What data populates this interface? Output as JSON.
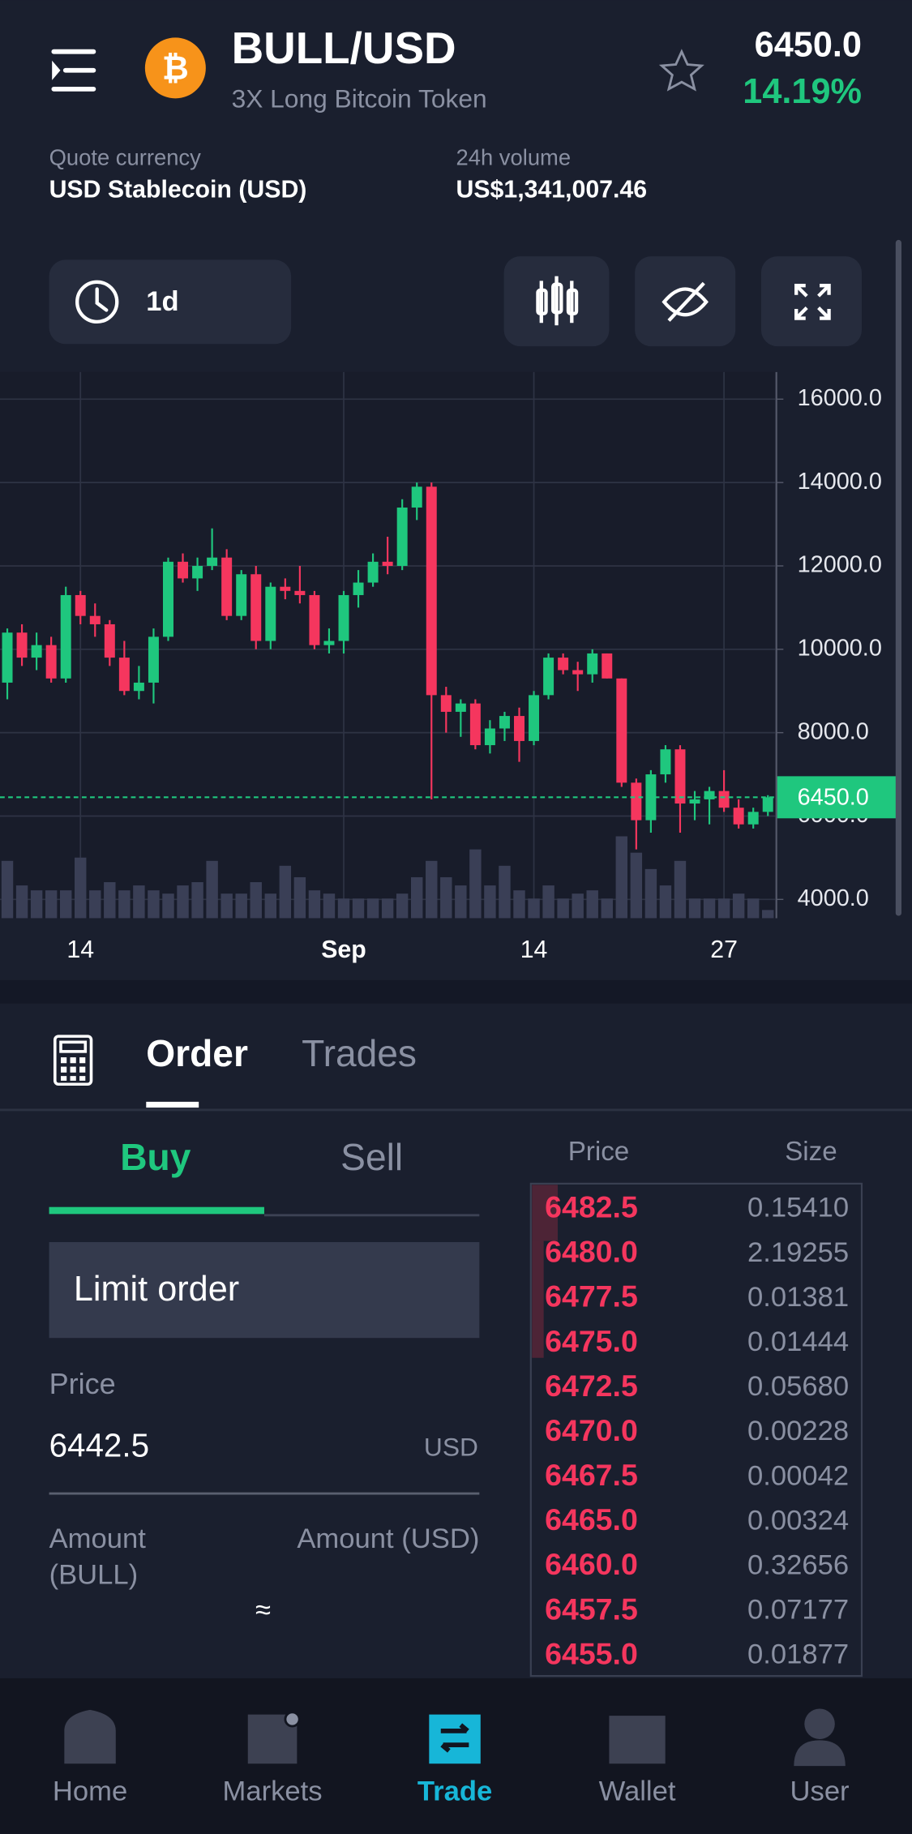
{
  "header": {
    "logo": "₿",
    "symbol": "BULL/USD",
    "name": "3X Long Bitcoin Token",
    "price": "6450.0",
    "change": "14.19%"
  },
  "stats": [
    {
      "label": "Quote currency",
      "value": "USD Stablecoin (USD)"
    },
    {
      "label": "24h volume",
      "value": "US$1,341,007.46"
    }
  ],
  "toolbar": {
    "interval": "1d"
  },
  "chart_data": {
    "type": "candlestick",
    "categories": [
      null,
      null,
      null,
      null,
      null,
      "14",
      null,
      null,
      null,
      null,
      null,
      null,
      null,
      null,
      null,
      null,
      null,
      null,
      null,
      null,
      null,
      null,
      null,
      "Sep",
      null,
      null,
      null,
      null,
      null,
      null,
      null,
      null,
      null,
      null,
      null,
      null,
      "14",
      null,
      null,
      null,
      null,
      null,
      null,
      null,
      null,
      null,
      null,
      null,
      null,
      "27",
      null,
      null,
      null
    ],
    "candles": [
      [
        9200,
        10500,
        8800,
        10400
      ],
      [
        10400,
        10600,
        9600,
        9800
      ],
      [
        9800,
        10400,
        9500,
        10100
      ],
      [
        10100,
        10300,
        9200,
        9300
      ],
      [
        9300,
        11500,
        9200,
        11300
      ],
      [
        11300,
        11400,
        10600,
        10800
      ],
      [
        10800,
        11100,
        10300,
        10600
      ],
      [
        10600,
        10700,
        9600,
        9800
      ],
      [
        9800,
        10200,
        8900,
        9000
      ],
      [
        9000,
        9600,
        8800,
        9200
      ],
      [
        9200,
        10500,
        8700,
        10300
      ],
      [
        10300,
        12200,
        10200,
        12100
      ],
      [
        12100,
        12300,
        11600,
        11700
      ],
      [
        11700,
        12200,
        11400,
        12000
      ],
      [
        12000,
        12900,
        11900,
        12200
      ],
      [
        12200,
        12400,
        10700,
        10800
      ],
      [
        10800,
        11900,
        10700,
        11800
      ],
      [
        11800,
        12000,
        10000,
        10200
      ],
      [
        10200,
        11600,
        10000,
        11500
      ],
      [
        11500,
        11700,
        11200,
        11400
      ],
      [
        11400,
        12000,
        11100,
        11300
      ],
      [
        11300,
        11400,
        10000,
        10100
      ],
      [
        10100,
        10500,
        9900,
        10200
      ],
      [
        10200,
        11400,
        9900,
        11300
      ],
      [
        11300,
        11900,
        11000,
        11600
      ],
      [
        11600,
        12300,
        11500,
        12100
      ],
      [
        12100,
        12700,
        11800,
        12000
      ],
      [
        12000,
        13600,
        11900,
        13400
      ],
      [
        13400,
        14000,
        13100,
        13900
      ],
      [
        13900,
        14000,
        6400,
        8900
      ],
      [
        8900,
        9100,
        8000,
        8500
      ],
      [
        8500,
        8800,
        7900,
        8700
      ],
      [
        8700,
        8800,
        7600,
        7700
      ],
      [
        7700,
        8300,
        7500,
        8100
      ],
      [
        8100,
        8500,
        7800,
        8400
      ],
      [
        8400,
        8600,
        7300,
        7800
      ],
      [
        7800,
        9000,
        7700,
        8900
      ],
      [
        8900,
        9900,
        8800,
        9800
      ],
      [
        9800,
        9900,
        9400,
        9500
      ],
      [
        9500,
        9700,
        9000,
        9400
      ],
      [
        9400,
        10000,
        9200,
        9900
      ],
      [
        9900,
        9900,
        9300,
        9300
      ],
      [
        9300,
        9300,
        6700,
        6800
      ],
      [
        6800,
        6900,
        5200,
        5900
      ],
      [
        5900,
        7100,
        5600,
        7000
      ],
      [
        7000,
        7700,
        6800,
        7600
      ],
      [
        7600,
        7700,
        5600,
        6300
      ],
      [
        6300,
        6600,
        5900,
        6400
      ],
      [
        6400,
        6700,
        5800,
        6600
      ],
      [
        6600,
        7100,
        6100,
        6200
      ],
      [
        6200,
        6400,
        5700,
        5800
      ],
      [
        5800,
        6200,
        5700,
        6100
      ],
      [
        6100,
        6500,
        6000,
        6450
      ]
    ],
    "volumes": [
      35,
      20,
      17,
      17,
      17,
      37,
      17,
      22,
      17,
      20,
      17,
      15,
      20,
      22,
      35,
      15,
      15,
      22,
      15,
      32,
      25,
      17,
      15,
      12,
      12,
      12,
      12,
      15,
      25,
      35,
      25,
      20,
      42,
      20,
      32,
      17,
      12,
      20,
      12,
      15,
      17,
      12,
      50,
      40,
      30,
      20,
      35,
      12,
      12,
      12,
      15,
      12,
      5
    ],
    "vlim": [
      0,
      100
    ],
    "ylim": [
      3550,
      16650
    ],
    "yticks": [
      {
        "value": 4000,
        "label": "4000.0"
      },
      {
        "value": 6000,
        "label": "6000.0"
      },
      {
        "value": 8000,
        "label": "8000.0"
      },
      {
        "value": 10000,
        "label": "10000.0"
      },
      {
        "value": 12000,
        "label": "12000.0"
      },
      {
        "value": 14000,
        "label": "14000.0"
      },
      {
        "value": 16000,
        "label": "16000.0"
      }
    ],
    "current_price": {
      "value": 6450,
      "label": "6450.0"
    },
    "grid": true,
    "up_color": "#1fc77e",
    "down_color": "#f5365e",
    "volume_color": "#3a3f56",
    "current_color": "#1fc77e"
  },
  "order_panel": {
    "tabs": [
      "Order",
      "Trades"
    ],
    "sides": [
      "Buy",
      "Sell"
    ],
    "order_type": "Limit order",
    "price_label": "Price",
    "price": "6442.5",
    "price_unit": "USD",
    "amount_label": [
      "Amount",
      "(BULL)"
    ],
    "amount_usd_label": "Amount (USD)",
    "approx": "≈"
  },
  "order_book": {
    "headers": [
      "Price",
      "Size"
    ],
    "rows": [
      [
        "6482.5",
        "0.15410"
      ],
      [
        "6480.0",
        "2.19255"
      ],
      [
        "6477.5",
        "0.01381"
      ],
      [
        "6475.0",
        "0.01444"
      ],
      [
        "6472.5",
        "0.05680"
      ],
      [
        "6470.0",
        "0.00228"
      ],
      [
        "6467.5",
        "0.00042"
      ],
      [
        "6465.0",
        "0.00324"
      ],
      [
        "6460.0",
        "0.32656"
      ],
      [
        "6457.5",
        "0.07177"
      ],
      [
        "6455.0",
        "0.01877"
      ]
    ]
  },
  "nav": [
    "Home",
    "Markets",
    "Trade",
    "Wallet",
    "User"
  ]
}
